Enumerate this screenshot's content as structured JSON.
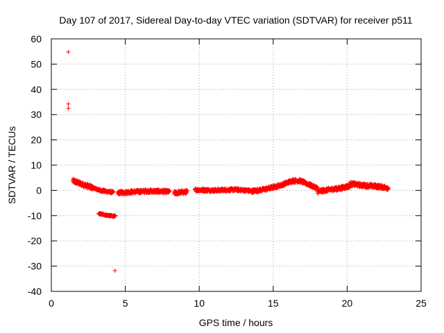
{
  "chart_data": {
    "type": "scatter",
    "title": "Day 107 of 2017, Sidereal Day-to-day VTEC variation (SDTVAR) for receiver p511",
    "xlabel": "GPS time / hours",
    "ylabel": "SDTVAR / TECUs",
    "xlim": [
      0,
      25
    ],
    "ylim": [
      -40,
      60
    ],
    "x_ticks": [
      0,
      5,
      10,
      15,
      20,
      25
    ],
    "y_ticks": [
      -40,
      -30,
      -20,
      -10,
      0,
      10,
      20,
      30,
      40,
      50,
      60
    ],
    "grid": true,
    "marker": "+",
    "color": "#ff0000",
    "outliers": [
      {
        "x": 1.15,
        "y": 54.8
      },
      {
        "x": 1.15,
        "y": 34.2
      },
      {
        "x": 1.15,
        "y": 32.5
      },
      {
        "x": 4.3,
        "y": -31.8
      }
    ],
    "segments": [
      {
        "start": 1.45,
        "end": 2.8,
        "points": [
          [
            1.45,
            3.8
          ],
          [
            1.8,
            3.0
          ],
          [
            2.2,
            2.2
          ],
          [
            2.8,
            1.0
          ]
        ],
        "spread": 1.8
      },
      {
        "start": 2.8,
        "end": 4.2,
        "points": [
          [
            2.8,
            1.0
          ],
          [
            3.3,
            0.0
          ],
          [
            3.8,
            -0.5
          ],
          [
            4.2,
            -0.8
          ]
        ],
        "spread": 1.0
      },
      {
        "start": 3.2,
        "end": 4.35,
        "points": [
          [
            3.2,
            -9.2
          ],
          [
            3.8,
            -9.9
          ],
          [
            4.35,
            -10.3
          ]
        ],
        "spread": 0.6
      },
      {
        "start": 4.5,
        "end": 8.0,
        "points": [
          [
            4.5,
            -1.0
          ],
          [
            5.5,
            -0.6
          ],
          [
            6.5,
            -0.3
          ],
          [
            7.5,
            -0.4
          ],
          [
            8.0,
            -0.6
          ]
        ],
        "spread": 1.4
      },
      {
        "start": 8.3,
        "end": 9.2,
        "points": [
          [
            8.3,
            -1.0
          ],
          [
            8.8,
            -0.8
          ],
          [
            9.2,
            -0.6
          ]
        ],
        "spread": 1.5
      },
      {
        "start": 9.7,
        "end": 13.5,
        "points": [
          [
            9.7,
            0.2
          ],
          [
            11.0,
            0.0
          ],
          [
            12.5,
            0.3
          ],
          [
            13.5,
            -0.2
          ]
        ],
        "spread": 1.2
      },
      {
        "start": 13.5,
        "end": 18.0,
        "points": [
          [
            13.5,
            -0.4
          ],
          [
            14.5,
            0.5
          ],
          [
            15.5,
            2.0
          ],
          [
            16.3,
            3.8
          ],
          [
            16.8,
            3.8
          ],
          [
            17.3,
            2.6
          ],
          [
            18.0,
            0.8
          ]
        ],
        "spread": 1.4
      },
      {
        "start": 18.0,
        "end": 20.2,
        "points": [
          [
            18.0,
            -0.5
          ],
          [
            18.8,
            0.3
          ],
          [
            19.5,
            0.8
          ],
          [
            20.2,
            1.8
          ]
        ],
        "spread": 1.6
      },
      {
        "start": 20.2,
        "end": 22.8,
        "points": [
          [
            20.2,
            2.6
          ],
          [
            21.0,
            2.0
          ],
          [
            22.0,
            1.6
          ],
          [
            22.8,
            1.0
          ]
        ],
        "spread": 1.6
      }
    ]
  }
}
